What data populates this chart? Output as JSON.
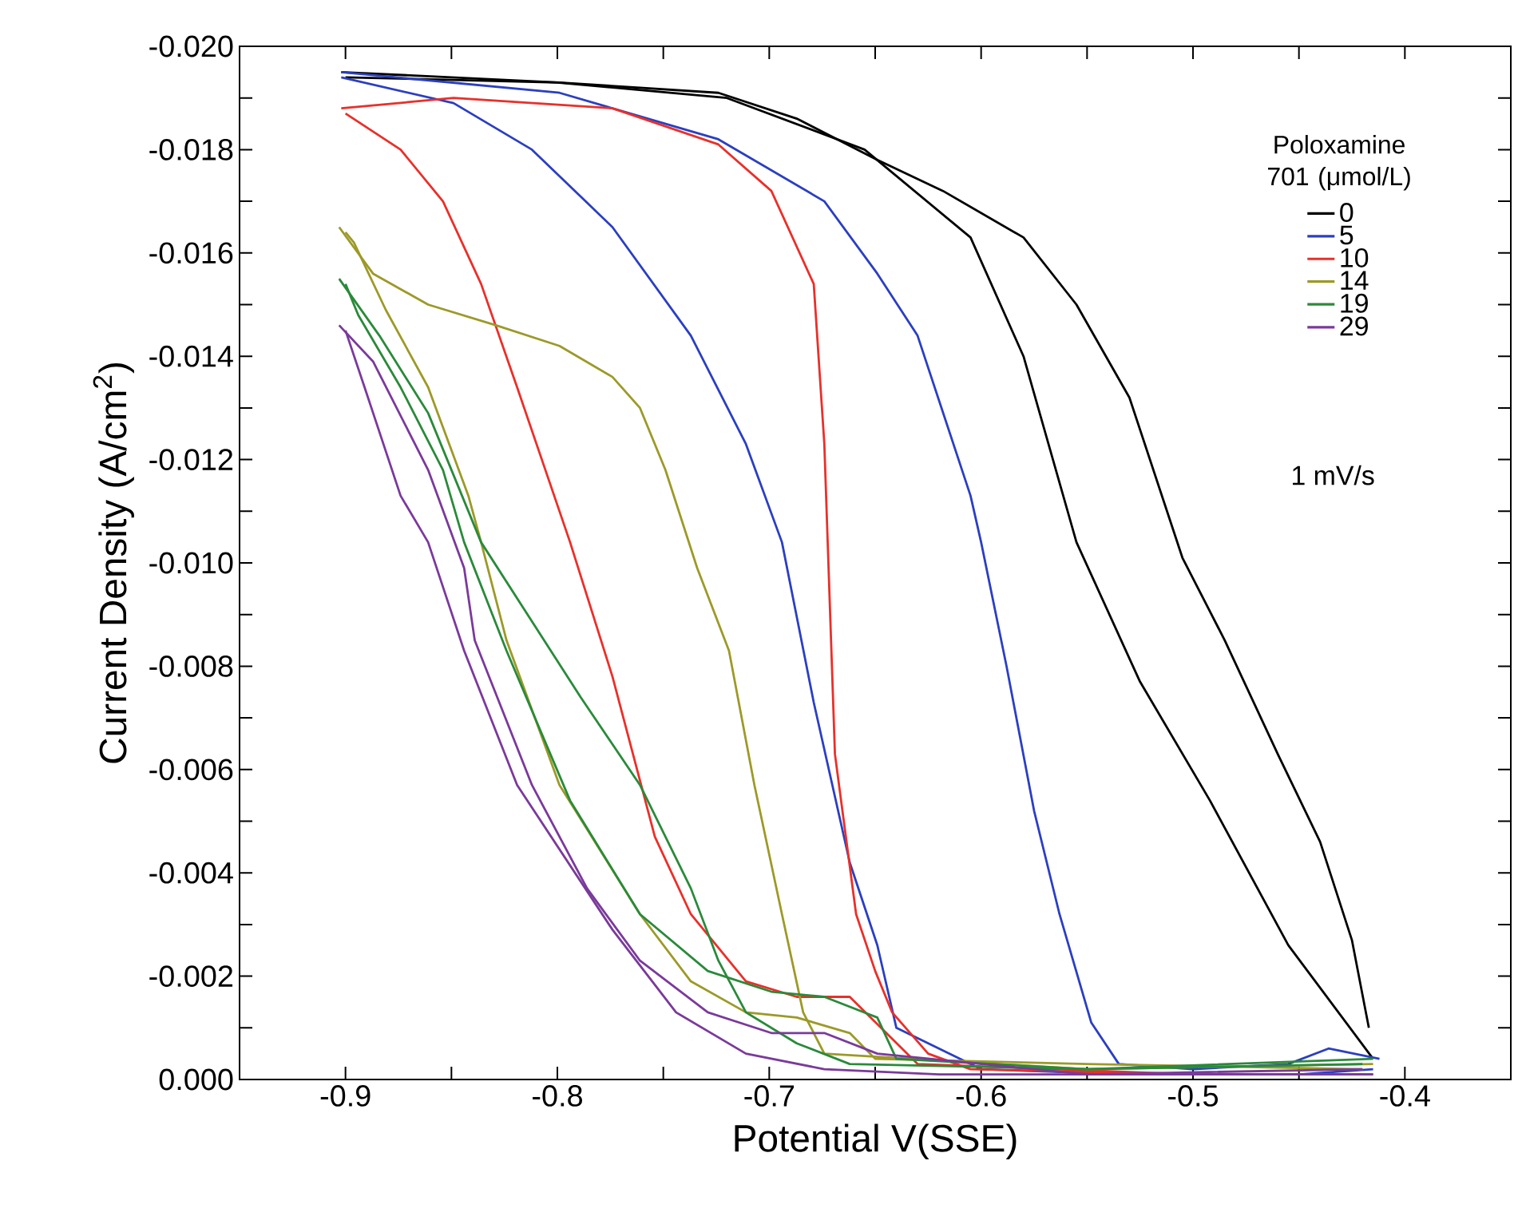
{
  "chart_data": {
    "type": "line",
    "xlabel": "Potential V(SSE)",
    "ylabel": "Current Density (A/cm$^{2}$)",
    "legend_title": "Poloxamine 701 (μmol/L)",
    "annotations": [
      "1 mV/s"
    ],
    "xlim": [
      -0.95,
      -0.35
    ],
    "ylim": [
      0,
      -0.02
    ],
    "xticks": [
      {
        "value": -0.9,
        "label": "-0.9"
      },
      {
        "value": -0.85,
        "label": null
      },
      {
        "value": -0.8,
        "label": "-0.8"
      },
      {
        "value": -0.75,
        "label": null
      },
      {
        "value": -0.7,
        "label": "-0.7"
      },
      {
        "value": -0.65,
        "label": null
      },
      {
        "value": -0.6,
        "label": "-0.6"
      },
      {
        "value": -0.55,
        "label": null
      },
      {
        "value": -0.5,
        "label": "-0.5"
      },
      {
        "value": -0.45,
        "label": null
      },
      {
        "value": -0.4,
        "label": "-0.4"
      }
    ],
    "yticks": [
      {
        "value": 0,
        "label": "0.000"
      },
      {
        "value": -0.001,
        "label": null
      },
      {
        "value": -0.002,
        "label": "-0.002"
      },
      {
        "value": -0.003,
        "label": null
      },
      {
        "value": -0.004,
        "label": "-0.004"
      },
      {
        "value": -0.005,
        "label": null
      },
      {
        "value": -0.006,
        "label": "-0.006"
      },
      {
        "value": -0.007,
        "label": null
      },
      {
        "value": -0.008,
        "label": "-0.008"
      },
      {
        "value": -0.009,
        "label": null
      },
      {
        "value": -0.01,
        "label": "-0.010"
      },
      {
        "value": -0.011,
        "label": null
      },
      {
        "value": -0.012,
        "label": "-0.012"
      },
      {
        "value": -0.013,
        "label": null
      },
      {
        "value": -0.014,
        "label": "-0.014"
      },
      {
        "value": -0.015,
        "label": null
      },
      {
        "value": -0.016,
        "label": "-0.016"
      },
      {
        "value": -0.017,
        "label": null
      },
      {
        "value": -0.018,
        "label": "-0.018"
      },
      {
        "value": -0.019,
        "label": null
      },
      {
        "value": -0.02,
        "label": "-0.020"
      }
    ],
    "grid": false,
    "legend": "top right",
    "marker": "none",
    "line_style": "solid",
    "series": [
      {
        "name": "0",
        "color": "#000000",
        "x": [
          -0.902,
          -0.799,
          -0.724,
          -0.687,
          -0.649,
          -0.618,
          -0.58,
          -0.555,
          -0.53,
          -0.505,
          -0.485,
          -0.46,
          -0.44,
          -0.425,
          -0.417
        ],
        "values": [
          -0.0195,
          -0.0193,
          -0.0191,
          -0.0186,
          -0.0178,
          -0.0172,
          -0.0163,
          -0.015,
          -0.0132,
          -0.0101,
          -0.0085,
          -0.0063,
          -0.0046,
          -0.0027,
          -0.001
        ]
      },
      {
        "color": "#000000",
        "x": [
          -0.9,
          -0.8,
          -0.72,
          -0.655,
          -0.605,
          -0.58,
          -0.555,
          -0.525,
          -0.492,
          -0.455,
          -0.415
        ],
        "values": [
          -0.0194,
          -0.0193,
          -0.019,
          -0.018,
          -0.0163,
          -0.014,
          -0.0104,
          -0.0077,
          -0.0054,
          -0.0026,
          -0.0004
        ]
      },
      {
        "name": "5",
        "color": "#2b3fc0",
        "x": [
          -0.902,
          -0.799,
          -0.724,
          -0.674,
          -0.649,
          -0.63,
          -0.605,
          -0.6,
          -0.588,
          -0.575,
          -0.563,
          -0.548,
          -0.535,
          -0.5,
          -0.455,
          -0.436,
          -0.412
        ],
        "values": [
          -0.0195,
          -0.0191,
          -0.0182,
          -0.017,
          -0.0156,
          -0.0144,
          -0.0113,
          -0.0104,
          -0.008,
          -0.0052,
          -0.0032,
          -0.0011,
          -0.0003,
          -0.0002,
          -0.0003,
          -0.0006,
          -0.0004
        ]
      },
      {
        "color": "#2b3fc0",
        "x": [
          -0.902,
          -0.849,
          -0.812,
          -0.774,
          -0.737,
          -0.711,
          -0.694,
          -0.679,
          -0.662,
          -0.649,
          -0.64,
          -0.6,
          -0.53,
          -0.45,
          -0.415
        ],
        "values": [
          -0.0194,
          -0.0189,
          -0.018,
          -0.0165,
          -0.0144,
          -0.0123,
          -0.0104,
          -0.0073,
          -0.0042,
          -0.0026,
          -0.001,
          -0.0002,
          -0.0001,
          -0.0001,
          -0.0002
        ]
      },
      {
        "name": "10",
        "color": "#e8302a",
        "x": [
          -0.902,
          -0.849,
          -0.774,
          -0.724,
          -0.699,
          -0.679,
          -0.674,
          -0.672,
          -0.669,
          -0.659,
          -0.65,
          -0.642,
          -0.625,
          -0.605,
          -0.5,
          -0.415
        ],
        "values": [
          -0.0188,
          -0.019,
          -0.0188,
          -0.0181,
          -0.0172,
          -0.0154,
          -0.0123,
          -0.0099,
          -0.0063,
          -0.0032,
          -0.0021,
          -0.0013,
          -0.0005,
          -0.0002,
          -0.0001,
          -0.0001
        ]
      },
      {
        "color": "#e8302a",
        "x": [
          -0.9,
          -0.874,
          -0.854,
          -0.836,
          -0.819,
          -0.794,
          -0.774,
          -0.754,
          -0.737,
          -0.711,
          -0.687,
          -0.662,
          -0.63,
          -0.5,
          -0.42
        ],
        "values": [
          -0.0187,
          -0.018,
          -0.017,
          -0.0154,
          -0.0134,
          -0.0104,
          -0.0078,
          -0.0047,
          -0.0032,
          -0.0019,
          -0.0016,
          -0.0016,
          -0.0003,
          -0.0001,
          -0.0001
        ]
      },
      {
        "name": "14",
        "color": "#9c9a28",
        "x": [
          -0.903,
          -0.887,
          -0.861,
          -0.829,
          -0.799,
          -0.774,
          -0.761,
          -0.749,
          -0.734,
          -0.719,
          -0.707,
          -0.694,
          -0.684,
          -0.674,
          -0.55,
          -0.415
        ],
        "values": [
          -0.0165,
          -0.0156,
          -0.015,
          -0.0146,
          -0.0142,
          -0.0136,
          -0.013,
          -0.0118,
          -0.0099,
          -0.0083,
          -0.0057,
          -0.0032,
          -0.0013,
          -0.0005,
          -0.0002,
          -0.0003
        ]
      },
      {
        "color": "#9c9a28",
        "x": [
          -0.9,
          -0.896,
          -0.881,
          -0.861,
          -0.842,
          -0.836,
          -0.824,
          -0.799,
          -0.761,
          -0.737,
          -0.711,
          -0.687,
          -0.662,
          -0.65,
          -0.55,
          -0.42
        ],
        "values": [
          -0.0164,
          -0.0162,
          -0.0149,
          -0.0134,
          -0.0113,
          -0.0104,
          -0.0085,
          -0.0057,
          -0.0032,
          -0.0019,
          -0.0013,
          -0.0012,
          -0.0009,
          -0.0004,
          -0.0003,
          -0.0002
        ]
      },
      {
        "name": "19",
        "color": "#2a8a3a",
        "x": [
          -0.903,
          -0.884,
          -0.861,
          -0.836,
          -0.789,
          -0.761,
          -0.737,
          -0.724,
          -0.711,
          -0.687,
          -0.662,
          -0.55,
          -0.415
        ],
        "values": [
          -0.0155,
          -0.0144,
          -0.0129,
          -0.0104,
          -0.0074,
          -0.0057,
          -0.0037,
          -0.0023,
          -0.0013,
          -0.0007,
          -0.0003,
          -0.0002,
          -0.0004
        ]
      },
      {
        "color": "#2a8a3a",
        "x": [
          -0.9,
          -0.894,
          -0.874,
          -0.854,
          -0.844,
          -0.824,
          -0.794,
          -0.761,
          -0.729,
          -0.699,
          -0.674,
          -0.649,
          -0.64,
          -0.55,
          -0.42
        ],
        "values": [
          -0.0154,
          -0.0148,
          -0.0134,
          -0.0118,
          -0.0104,
          -0.0083,
          -0.0054,
          -0.0032,
          -0.0021,
          -0.0017,
          -0.0016,
          -0.0012,
          -0.0004,
          -0.0002,
          -0.0003
        ]
      },
      {
        "name": "29",
        "color": "#7a3a9a",
        "x": [
          -0.903,
          -0.887,
          -0.861,
          -0.844,
          -0.839,
          -0.812,
          -0.786,
          -0.761,
          -0.729,
          -0.699,
          -0.674,
          -0.649,
          -0.55,
          -0.415
        ],
        "values": [
          -0.0146,
          -0.0139,
          -0.0118,
          -0.0099,
          -0.0085,
          -0.0057,
          -0.0037,
          -0.0023,
          -0.0013,
          -0.0009,
          -0.0009,
          -0.0005,
          -0.0001,
          -0.0001
        ]
      },
      {
        "color": "#7a3a9a",
        "x": [
          -0.9,
          -0.891,
          -0.874,
          -0.861,
          -0.844,
          -0.819,
          -0.774,
          -0.744,
          -0.711,
          -0.674,
          -0.62,
          -0.55,
          -0.42
        ],
        "values": [
          -0.0145,
          -0.0134,
          -0.0113,
          -0.0104,
          -0.0083,
          -0.0057,
          -0.0029,
          -0.0013,
          -0.0005,
          -0.0002,
          -0.0001,
          -0.0001,
          -0.0002
        ]
      }
    ]
  }
}
